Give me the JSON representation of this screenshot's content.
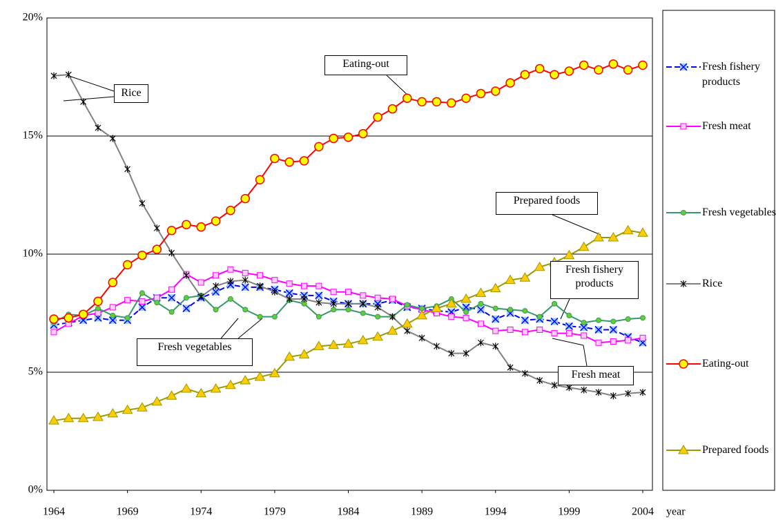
{
  "chart_data": {
    "type": "line",
    "x": [
      1964,
      1965,
      1966,
      1967,
      1968,
      1969,
      1970,
      1971,
      1972,
      1973,
      1974,
      1975,
      1976,
      1977,
      1978,
      1979,
      1980,
      1981,
      1982,
      1983,
      1984,
      1985,
      1986,
      1987,
      1988,
      1989,
      1990,
      1991,
      1992,
      1993,
      1994,
      1995,
      1996,
      1997,
      1998,
      1999,
      2000,
      2001,
      2002,
      2003,
      2004
    ],
    "xlim": [
      1964,
      2004
    ],
    "xticks": [
      1964,
      1969,
      1974,
      1979,
      1984,
      1989,
      1994,
      1999,
      2004
    ],
    "x_label": "year",
    "ylim": [
      0,
      20
    ],
    "yticks": [
      {
        "value": 0,
        "label": "0%"
      },
      {
        "value": 5,
        "label": "5%"
      },
      {
        "value": 10,
        "label": "10%"
      },
      {
        "value": 15,
        "label": "15%"
      },
      {
        "value": 20,
        "label": "20%"
      }
    ],
    "grid": true,
    "legend": "right",
    "series": [
      {
        "name": "Fresh fishery products",
        "color": "#0000ff",
        "marker": "x",
        "marker_fill": "#99ccff",
        "dashed": true,
        "values": [
          7.0,
          7.1,
          7.2,
          7.3,
          7.2,
          7.2,
          7.75,
          8.15,
          8.15,
          7.7,
          8.15,
          8.4,
          8.7,
          8.6,
          8.6,
          8.5,
          8.35,
          8.25,
          8.25,
          8.0,
          7.9,
          7.9,
          7.9,
          8.05,
          7.75,
          7.7,
          7.6,
          7.55,
          7.75,
          7.65,
          7.25,
          7.5,
          7.2,
          7.25,
          7.15,
          6.95,
          6.9,
          6.8,
          6.8,
          6.5,
          6.25
        ]
      },
      {
        "name": "Fresh meat",
        "color": "#ff00ff",
        "marker": "square",
        "marker_fill": "#ffccff",
        "values": [
          6.7,
          7.05,
          7.4,
          7.5,
          7.75,
          8.05,
          8.0,
          8.15,
          8.5,
          9.15,
          8.8,
          9.1,
          9.35,
          9.2,
          9.1,
          8.9,
          8.75,
          8.65,
          8.65,
          8.4,
          8.4,
          8.25,
          8.15,
          8.1,
          7.8,
          7.65,
          7.5,
          7.35,
          7.3,
          7.05,
          6.75,
          6.8,
          6.7,
          6.8,
          6.65,
          6.65,
          6.55,
          6.25,
          6.3,
          6.35,
          6.45
        ]
      },
      {
        "name": "Fresh vegetables",
        "color": "#339966",
        "marker": "dot",
        "marker_fill": "#66cc33",
        "values": [
          7.1,
          7.45,
          7.4,
          7.7,
          7.4,
          7.3,
          8.35,
          7.95,
          7.55,
          8.15,
          8.25,
          7.65,
          8.1,
          7.65,
          7.35,
          7.35,
          8.05,
          7.9,
          7.35,
          7.65,
          7.65,
          7.5,
          7.35,
          7.35,
          7.85,
          7.7,
          7.8,
          8.1,
          7.55,
          7.9,
          7.7,
          7.65,
          7.6,
          7.35,
          7.9,
          7.4,
          7.1,
          7.2,
          7.15,
          7.25,
          7.3
        ]
      },
      {
        "name": "Rice",
        "color": "#808080",
        "marker": "star",
        "marker_fill": "#000000",
        "values": [
          17.55,
          17.6,
          16.45,
          15.35,
          14.9,
          13.6,
          12.15,
          11.1,
          10.05,
          9.1,
          8.2,
          8.65,
          8.85,
          8.9,
          8.65,
          8.4,
          8.1,
          8.1,
          7.95,
          7.9,
          7.9,
          7.9,
          7.75,
          7.35,
          6.75,
          6.45,
          6.1,
          5.8,
          5.8,
          6.25,
          6.1,
          5.2,
          4.95,
          4.65,
          4.45,
          4.35,
          4.25,
          4.15,
          4.0,
          4.1,
          4.15
        ]
      },
      {
        "name": "Eating-out",
        "color": "#ff0000",
        "marker": "circle",
        "marker_fill": "#ffff00",
        "values": [
          7.25,
          7.3,
          7.45,
          8.0,
          8.8,
          9.55,
          9.95,
          10.2,
          11.0,
          11.25,
          11.15,
          11.4,
          11.85,
          12.35,
          13.15,
          14.05,
          13.9,
          13.95,
          14.55,
          14.9,
          14.95,
          15.1,
          15.8,
          16.15,
          16.6,
          16.45,
          16.45,
          16.4,
          16.6,
          16.8,
          16.9,
          17.25,
          17.6,
          17.85,
          17.6,
          17.75,
          18.0,
          17.8,
          18.05,
          17.8,
          18.0
        ]
      },
      {
        "name": "Prepared foods",
        "color": "#999900",
        "marker": "triangle",
        "marker_fill": "#ffcc00",
        "values": [
          2.95,
          3.05,
          3.05,
          3.1,
          3.25,
          3.4,
          3.5,
          3.75,
          4.0,
          4.3,
          4.1,
          4.3,
          4.45,
          4.65,
          4.8,
          4.95,
          5.65,
          5.75,
          6.1,
          6.15,
          6.2,
          6.35,
          6.5,
          6.75,
          7.05,
          7.4,
          7.7,
          7.9,
          8.1,
          8.35,
          8.55,
          8.9,
          9.0,
          9.45,
          9.65,
          9.95,
          10.3,
          10.7,
          10.7,
          11.0,
          10.9
        ]
      }
    ],
    "annotations": [
      "Rice",
      "Eating-out",
      "Prepared foods",
      "Fresh fishery products",
      "Fresh vegetables",
      "Fresh meat"
    ]
  }
}
